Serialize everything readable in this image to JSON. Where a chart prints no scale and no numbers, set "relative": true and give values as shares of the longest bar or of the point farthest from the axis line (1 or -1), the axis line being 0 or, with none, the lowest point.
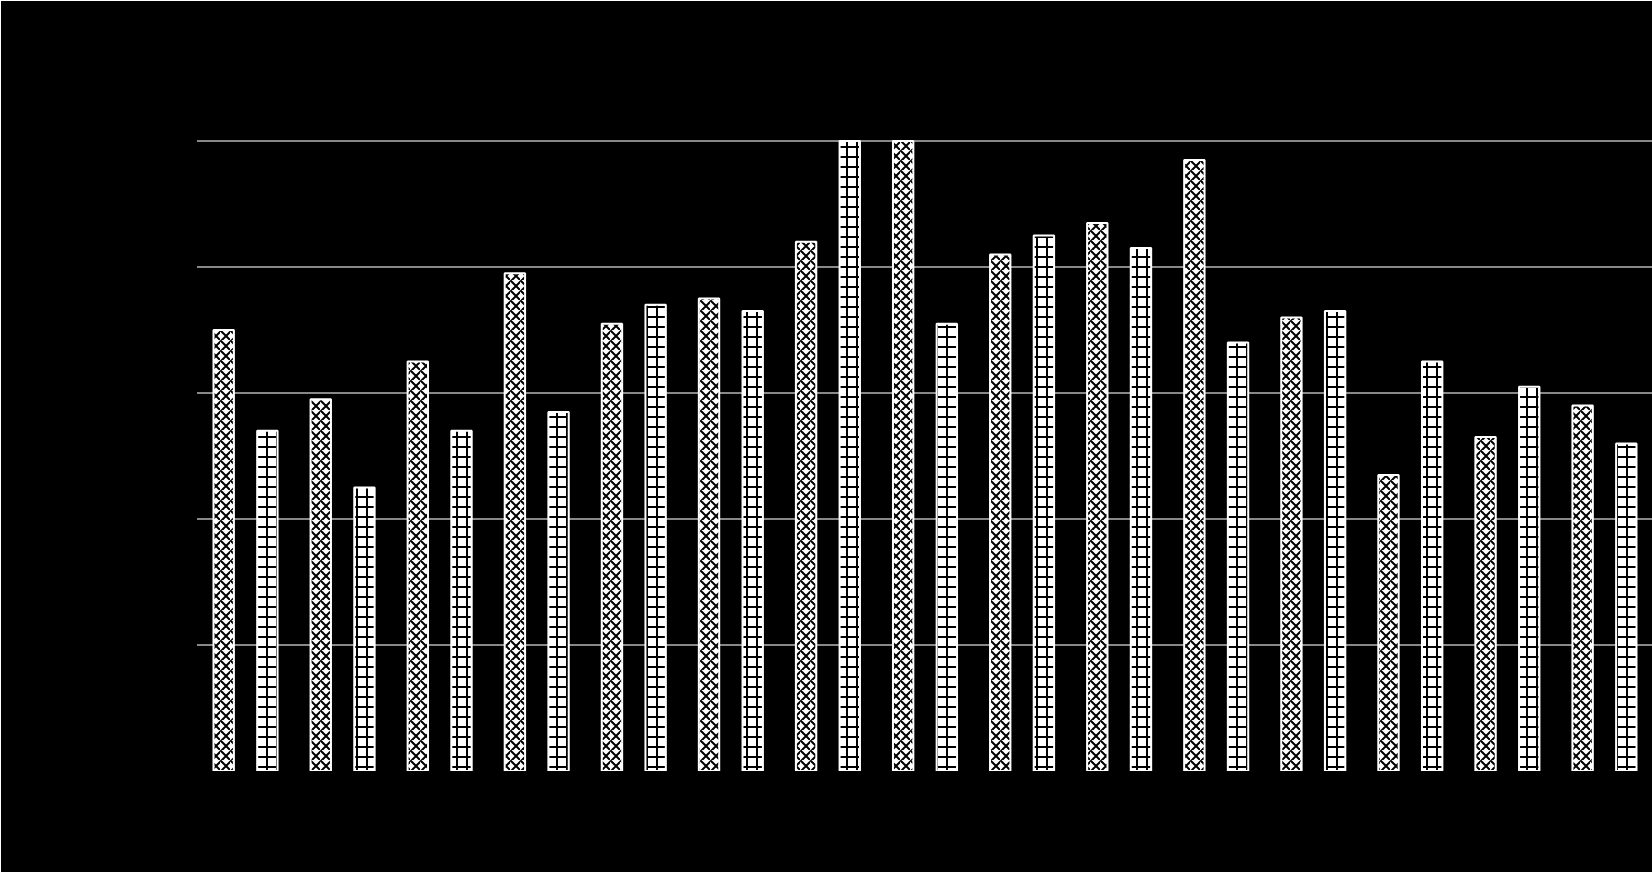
{
  "chart_data": {
    "type": "bar",
    "relative": true,
    "grid": "y",
    "categories": [
      null,
      null,
      null,
      null,
      null,
      null,
      null,
      null,
      null,
      null,
      null,
      null,
      null,
      null,
      null
    ],
    "series": [
      {
        "color": "#ffffff",
        "values": [
          0.7,
          0.59,
          0.65,
          0.79,
          0.71,
          0.75,
          0.84,
          1.0,
          0.82,
          0.87,
          0.97,
          0.72,
          0.47,
          0.53,
          0.58
        ]
      },
      {
        "color": "#ffffff",
        "values": [
          0.54,
          0.45,
          0.54,
          0.57,
          0.74,
          0.73,
          1.0,
          0.71,
          0.85,
          0.83,
          0.68,
          0.73,
          0.65,
          0.61,
          0.52
        ]
      }
    ]
  }
}
